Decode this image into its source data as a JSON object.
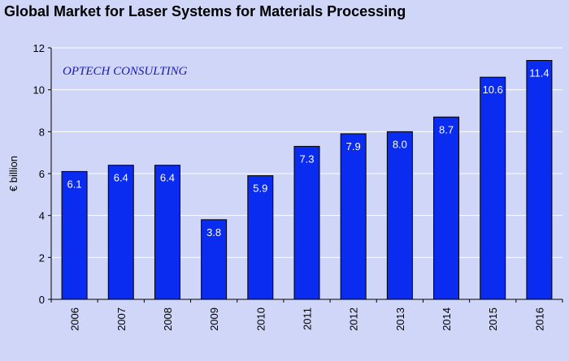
{
  "chart_data": {
    "type": "bar",
    "title": "Global Market for Laser Systems for Materials Processing",
    "annotation": "OPTECH CONSULTING",
    "ylabel": "€ billion",
    "xlabel": "",
    "categories": [
      "2006",
      "2007",
      "2008",
      "2009",
      "2010",
      "2011",
      "2012",
      "2013",
      "2014",
      "2015",
      "2016"
    ],
    "values": [
      6.1,
      6.4,
      6.4,
      3.8,
      5.9,
      7.3,
      7.9,
      8.0,
      8.7,
      10.6,
      11.4
    ],
    "data_labels": [
      "6.1",
      "6.4",
      "6.4",
      "3.8",
      "5.9",
      "7.3",
      "7.9",
      "8.0",
      "8.7",
      "10.6",
      "11.4"
    ],
    "ylim": [
      0,
      12
    ],
    "yticks": [
      0,
      2,
      4,
      6,
      8,
      10,
      12
    ],
    "grid": true,
    "colors": {
      "background": "#cfd6f7",
      "plot_background": "#cfd6f7",
      "bar_fill": "#0a2bf0",
      "bar_stroke": "#000000",
      "grid": "#ffffff",
      "data_label": "#ffffff",
      "annotation": "#1a1ab0"
    }
  }
}
